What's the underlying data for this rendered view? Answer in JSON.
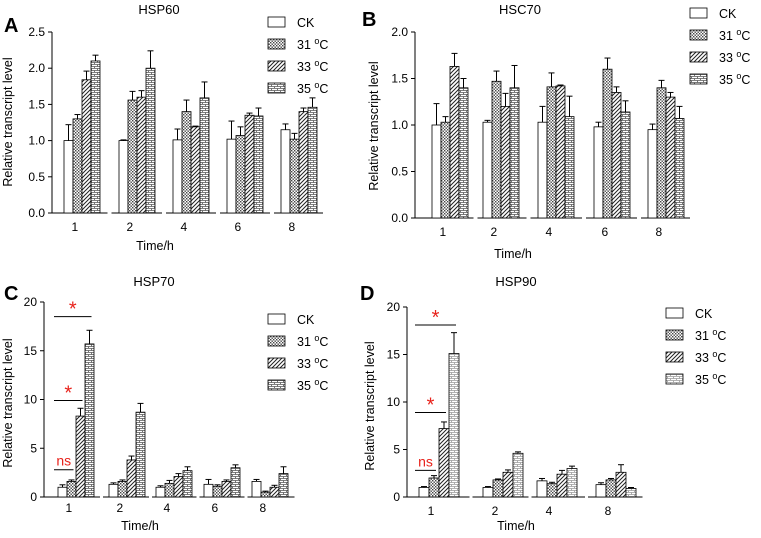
{
  "figure": {
    "legend_labels": [
      "CK",
      "31 °C",
      "33 °C",
      "35 °C"
    ]
  },
  "chart_data": [
    {
      "panel": "A",
      "type": "bar",
      "title": "HSP60",
      "xlabel": "Time/h",
      "ylabel": "Relative transcript level",
      "ylim": [
        0,
        2.5
      ],
      "yticks": [
        "0.0",
        "0.5",
        "1.0",
        "1.5",
        "2.0",
        "2.5"
      ],
      "categories": [
        "1",
        "2",
        "4",
        "6",
        "8"
      ],
      "series": [
        {
          "name": "CK",
          "values": [
            1.0,
            1.0,
            1.01,
            1.02,
            1.15
          ],
          "errors": [
            0.22,
            0.01,
            0.15,
            0.25,
            0.08
          ]
        },
        {
          "name": "31 °C",
          "values": [
            1.3,
            1.56,
            1.4,
            1.07,
            1.02
          ],
          "errors": [
            0.06,
            0.12,
            0.16,
            0.12,
            0.08
          ]
        },
        {
          "name": "33 °C",
          "values": [
            1.84,
            1.6,
            1.19,
            1.35,
            1.4
          ],
          "errors": [
            0.12,
            0.09,
            0.01,
            0.03,
            0.05
          ]
        },
        {
          "name": "35 °C",
          "values": [
            2.1,
            2.0,
            1.59,
            1.34,
            1.46
          ],
          "errors": [
            0.08,
            0.24,
            0.22,
            0.11,
            0.13
          ]
        }
      ]
    },
    {
      "panel": "B",
      "type": "bar",
      "title": "HSC70",
      "xlabel": "Time/h",
      "ylabel": "Relative transcript level",
      "ylim": [
        0,
        2.0
      ],
      "yticks": [
        "0.0",
        "0.5",
        "1.0",
        "1.5",
        "2.0"
      ],
      "categories": [
        "1",
        "2",
        "4",
        "6",
        "8"
      ],
      "series": [
        {
          "name": "CK",
          "values": [
            1.0,
            1.03,
            1.03,
            0.98,
            0.95
          ],
          "errors": [
            0.23,
            0.02,
            0.17,
            0.05,
            0.06
          ]
        },
        {
          "name": "31 °C",
          "values": [
            1.03,
            1.47,
            1.41,
            1.6,
            1.4
          ],
          "errors": [
            0.06,
            0.11,
            0.15,
            0.12,
            0.08
          ]
        },
        {
          "name": "33 °C",
          "values": [
            1.63,
            1.2,
            1.42,
            1.35,
            1.3
          ],
          "errors": [
            0.14,
            0.14,
            0.01,
            0.06,
            0.05
          ]
        },
        {
          "name": "35 °C",
          "values": [
            1.4,
            1.4,
            1.09,
            1.14,
            1.07
          ],
          "errors": [
            0.1,
            0.24,
            0.22,
            0.12,
            0.13
          ]
        }
      ]
    },
    {
      "panel": "C",
      "type": "bar",
      "title": "HSP70",
      "xlabel": "Time/h",
      "ylabel": "Relative transcript level",
      "ylim": [
        0,
        20
      ],
      "yticks": [
        "0",
        "5",
        "10",
        "15",
        "20"
      ],
      "categories": [
        "1",
        "2",
        "4",
        "6",
        "8"
      ],
      "series": [
        {
          "name": "CK",
          "values": [
            1.0,
            1.3,
            1.0,
            1.3,
            1.6
          ],
          "errors": [
            0.25,
            0.15,
            0.15,
            0.5,
            0.2
          ]
        },
        {
          "name": "31 °C",
          "values": [
            1.6,
            1.6,
            1.4,
            1.1,
            0.5
          ],
          "errors": [
            0.15,
            0.15,
            0.3,
            0.15,
            0.1
          ]
        },
        {
          "name": "33 °C",
          "values": [
            8.3,
            3.8,
            2.1,
            1.6,
            1.0
          ],
          "errors": [
            0.8,
            0.4,
            0.3,
            0.15,
            0.2
          ]
        },
        {
          "name": "35 °C",
          "values": [
            15.7,
            8.7,
            2.7,
            3.0,
            2.4
          ],
          "errors": [
            1.4,
            0.9,
            0.4,
            0.3,
            0.7
          ]
        }
      ],
      "annotations": [
        {
          "text": "ns",
          "from_series": 0,
          "to_series": 1,
          "category": 0,
          "y": 2.8
        },
        {
          "text": "*",
          "from_series": 0,
          "to_series": 2,
          "category": 0,
          "y": 9.9
        },
        {
          "text": "*",
          "from_series": 0,
          "to_series": 3,
          "category": 0,
          "y": 18.5
        }
      ]
    },
    {
      "panel": "D",
      "type": "bar",
      "title": "HSP90",
      "xlabel": "Time/h",
      "ylabel": "Relative transcript level",
      "ylim": [
        0,
        20
      ],
      "yticks": [
        "0",
        "5",
        "10",
        "15",
        "20"
      ],
      "categories": [
        "1",
        "2",
        "4",
        "8"
      ],
      "series": [
        {
          "name": "CK",
          "values": [
            1.0,
            1.0,
            1.7,
            1.3
          ],
          "errors": [
            0.1,
            0.1,
            0.25,
            0.2
          ]
        },
        {
          "name": "31 °C",
          "values": [
            2.0,
            1.8,
            1.4,
            1.8
          ],
          "errors": [
            0.25,
            0.1,
            0.15,
            0.15
          ]
        },
        {
          "name": "33 °C",
          "values": [
            7.2,
            2.6,
            2.4,
            2.6
          ],
          "errors": [
            0.7,
            0.25,
            0.4,
            0.8
          ]
        },
        {
          "name": "35 °C",
          "values": [
            15.1,
            4.6,
            3.0,
            0.9
          ],
          "errors": [
            2.2,
            0.15,
            0.25,
            0.1
          ]
        }
      ],
      "annotations": [
        {
          "text": "ns",
          "from_series": 0,
          "to_series": 1,
          "category": 0,
          "y": 2.8
        },
        {
          "text": "*",
          "from_series": 0,
          "to_series": 2,
          "category": 0,
          "y": 8.9
        },
        {
          "text": "*",
          "from_series": 0,
          "to_series": 3,
          "category": 0,
          "y": 18.1
        }
      ]
    }
  ]
}
